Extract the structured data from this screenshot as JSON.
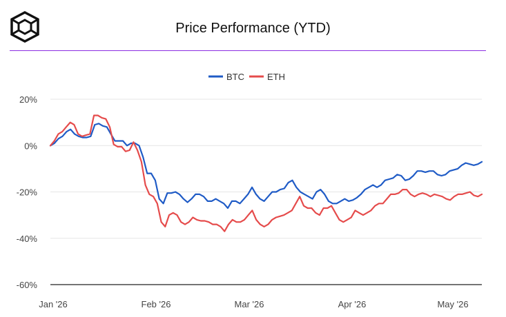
{
  "header": {
    "title": "Price Performance (YTD)",
    "logo": "cube-logo-icon"
  },
  "colors": {
    "btc": "#1f5bc6",
    "eth": "#e54b4b",
    "divider": "#8a2be2",
    "grid": "#e6e6e6"
  },
  "chart_data": {
    "type": "line",
    "title": "Price Performance (YTD)",
    "xlabel": "",
    "ylabel": "",
    "ylim": [
      -60,
      20
    ],
    "yticks": [
      20,
      0,
      -20,
      -40,
      -60
    ],
    "ytick_labels": [
      "20%",
      "0%",
      "-20%",
      "-40%",
      "-60%"
    ],
    "xtick_labels": [
      "Jan '26",
      "Feb '26",
      "Mar '26",
      "Apr '26",
      "May '26"
    ],
    "grid": true,
    "legend_position": "top-center",
    "series": [
      {
        "name": "BTC",
        "color": "#1f5bc6",
        "values": [
          0,
          1,
          3,
          4,
          6,
          7,
          5,
          4,
          3.5,
          3.5,
          4,
          9,
          9.5,
          8.5,
          8,
          5,
          2,
          2,
          2,
          0,
          1,
          1,
          0,
          -5,
          -12,
          -12,
          -15,
          -23,
          -25,
          -20.5,
          -20.5,
          -20,
          -21,
          -23,
          -24.5,
          -23,
          -21,
          -21,
          -22,
          -24,
          -24,
          -23,
          -24,
          -25,
          -27,
          -24,
          -24,
          -25,
          -23,
          -21,
          -18,
          -21,
          -23,
          -24,
          -22,
          -20,
          -20,
          -19,
          -18.5,
          -16,
          -15,
          -18,
          -20,
          -21,
          -22,
          -23,
          -20,
          -19,
          -21,
          -24,
          -25,
          -25,
          -24,
          -23,
          -24,
          -23.5,
          -22.5,
          -21,
          -19,
          -18,
          -17,
          -18,
          -17,
          -15,
          -14.5,
          -14,
          -12.5,
          -13,
          -15,
          -14.5,
          -13,
          -11,
          -11,
          -11.5,
          -11,
          -11,
          -12.5,
          -13,
          -12.5,
          -11,
          -10.5,
          -10,
          -8.5,
          -7.5,
          -8,
          -8.5,
          -8,
          -7
        ]
      },
      {
        "name": "ETH",
        "color": "#e54b4b",
        "values": [
          0,
          2,
          5,
          6,
          8,
          10,
          9,
          5,
          4,
          4.5,
          5,
          13,
          13,
          12,
          11.5,
          8,
          0.5,
          -0.5,
          -0.5,
          -2.5,
          -2,
          1.5,
          -2,
          -7,
          -17,
          -21,
          -22,
          -25,
          -33,
          -35,
          -30,
          -29,
          -30,
          -33,
          -34,
          -33,
          -31,
          -32,
          -32.5,
          -32.5,
          -33,
          -34,
          -34,
          -35,
          -37,
          -34,
          -32,
          -33,
          -33,
          -32,
          -30,
          -28,
          -32,
          -34,
          -35,
          -34,
          -32,
          -31,
          -30.5,
          -30,
          -29,
          -28,
          -25,
          -22,
          -26,
          -27,
          -27,
          -29,
          -30,
          -27,
          -27,
          -26,
          -29,
          -32,
          -33,
          -32,
          -31,
          -28,
          -29,
          -30,
          -29,
          -28,
          -26,
          -25,
          -25,
          -23,
          -21,
          -21,
          -20.5,
          -19,
          -19,
          -21,
          -22,
          -21,
          -20.5,
          -21,
          -22,
          -21,
          -21.5,
          -22,
          -23,
          -23.5,
          -22,
          -21,
          -21,
          -20.5,
          -20,
          -21.5,
          -22,
          -21
        ]
      }
    ]
  }
}
